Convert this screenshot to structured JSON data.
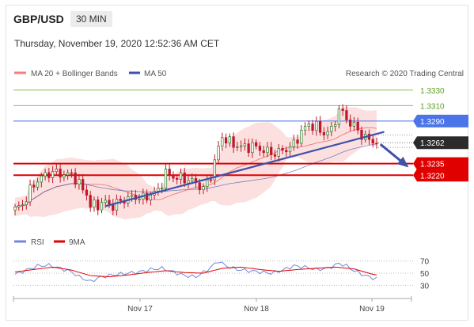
{
  "header": {
    "symbol": "GBP/USD",
    "timeframe": "30 MIN",
    "timestamp": "Thursday, November 19, 2020 12:52:36 AM CET",
    "copyright": "Research © 2020 Trading Central"
  },
  "colors": {
    "candle": "#c0182a",
    "bands_fill": "#fbd6d6",
    "ma20": "#f08080",
    "ma50": "#3f51a8",
    "resistance_green": "#8bc34a",
    "resistance_blue": "#4a74e8",
    "support_red": "#e00000",
    "current_price": "#2b2b2b",
    "rsi": "#6f88d8",
    "rsi_ma": "#e00000"
  },
  "chart_data": [
    {
      "type": "line",
      "title": "GBP/USD",
      "legend": [
        {
          "name": "MA 20 + Bollinger Bands",
          "icon": "salmon-line-icon"
        },
        {
          "name": "MA 50",
          "icon": "navy-line-icon"
        }
      ],
      "x_ticks": [
        "Nov 17",
        "Nov 18",
        "Nov 19"
      ],
      "ylim": [
        1.3165,
        1.334
      ],
      "price_path": [
        [
          0,
          1.3176
        ],
        [
          2,
          1.3182
        ],
        [
          4,
          1.32
        ],
        [
          6,
          1.3214
        ],
        [
          8,
          1.322
        ],
        [
          10,
          1.3224
        ],
        [
          12,
          1.3222
        ],
        [
          14,
          1.322
        ],
        [
          15,
          1.3222
        ],
        [
          17,
          1.3208
        ],
        [
          19,
          1.3196
        ],
        [
          20,
          1.318
        ],
        [
          22,
          1.3182
        ],
        [
          24,
          1.3185
        ],
        [
          26,
          1.318
        ],
        [
          28,
          1.3187
        ],
        [
          30,
          1.319
        ],
        [
          32,
          1.3192
        ],
        [
          34,
          1.319
        ],
        [
          36,
          1.3195
        ],
        [
          38,
          1.32
        ],
        [
          40,
          1.3222
        ],
        [
          42,
          1.3218
        ],
        [
          44,
          1.3216
        ],
        [
          46,
          1.3214
        ],
        [
          48,
          1.321
        ],
        [
          50,
          1.3202
        ],
        [
          52,
          1.322
        ],
        [
          54,
          1.3255
        ],
        [
          55,
          1.327
        ],
        [
          57,
          1.3262
        ],
        [
          59,
          1.3258
        ],
        [
          61,
          1.3256
        ],
        [
          63,
          1.3258
        ],
        [
          65,
          1.3254
        ],
        [
          67,
          1.325
        ],
        [
          69,
          1.3248
        ],
        [
          71,
          1.3252
        ],
        [
          73,
          1.3256
        ],
        [
          74,
          1.326
        ],
        [
          76,
          1.3276
        ],
        [
          78,
          1.3286
        ],
        [
          80,
          1.3282
        ],
        [
          82,
          1.3274
        ],
        [
          84,
          1.3278
        ],
        [
          85,
          1.3292
        ],
        [
          86,
          1.3304
        ],
        [
          87,
          1.33
        ],
        [
          88,
          1.3294
        ],
        [
          89,
          1.3286
        ],
        [
          90,
          1.3284
        ],
        [
          91,
          1.3278
        ],
        [
          92,
          1.3272
        ],
        [
          93,
          1.3268
        ],
        [
          94,
          1.3266
        ],
        [
          96,
          1.3262
        ]
      ],
      "levels": [
        {
          "price": "1.3330",
          "role": "resistance",
          "style": "green"
        },
        {
          "price": "1.3310",
          "role": "resistance",
          "style": "green"
        },
        {
          "price": "1.3290",
          "role": "resistance",
          "style": "blue"
        },
        {
          "price": "1.3262",
          "role": "current",
          "style": "dark"
        },
        {
          "price": "1.3235",
          "role": "support",
          "style": "red"
        },
        {
          "price": "1.3220",
          "role": "support",
          "style": "red"
        }
      ],
      "trendline": {
        "from": [
          24,
          1.318
        ],
        "to": [
          98,
          1.3276
        ]
      },
      "projection": {
        "from": [
          97,
          1.326
        ],
        "to": [
          104,
          1.3232
        ]
      }
    },
    {
      "type": "line",
      "legend": [
        {
          "name": "RSI",
          "icon": "blue-line-icon"
        },
        {
          "name": "9MA",
          "icon": "red-line-icon"
        }
      ],
      "ylim": [
        20,
        80
      ],
      "y_ticks": [
        "70",
        "50",
        "30"
      ],
      "rsi_path": [
        [
          0,
          48
        ],
        [
          3,
          55
        ],
        [
          6,
          62
        ],
        [
          9,
          63
        ],
        [
          12,
          58
        ],
        [
          15,
          52
        ],
        [
          17,
          44
        ],
        [
          20,
          36
        ],
        [
          22,
          42
        ],
        [
          24,
          45
        ],
        [
          27,
          48
        ],
        [
          30,
          50
        ],
        [
          33,
          52
        ],
        [
          36,
          56
        ],
        [
          39,
          58
        ],
        [
          42,
          52
        ],
        [
          45,
          46
        ],
        [
          48,
          44
        ],
        [
          51,
          55
        ],
        [
          54,
          70
        ],
        [
          56,
          62
        ],
        [
          59,
          56
        ],
        [
          62,
          54
        ],
        [
          65,
          52
        ],
        [
          68,
          50
        ],
        [
          71,
          55
        ],
        [
          74,
          62
        ],
        [
          77,
          60
        ],
        [
          80,
          56
        ],
        [
          83,
          58
        ],
        [
          86,
          66
        ],
        [
          88,
          62
        ],
        [
          90,
          54
        ],
        [
          93,
          46
        ],
        [
          95,
          42
        ],
        [
          97,
          40
        ]
      ],
      "ma9_path": [
        [
          0,
          52
        ],
        [
          5,
          56
        ],
        [
          10,
          60
        ],
        [
          15,
          55
        ],
        [
          20,
          46
        ],
        [
          25,
          44
        ],
        [
          30,
          47
        ],
        [
          35,
          51
        ],
        [
          40,
          54
        ],
        [
          45,
          51
        ],
        [
          50,
          50
        ],
        [
          55,
          58
        ],
        [
          60,
          60
        ],
        [
          65,
          56
        ],
        [
          70,
          53
        ],
        [
          75,
          56
        ],
        [
          80,
          58
        ],
        [
          85,
          60
        ],
        [
          90,
          57
        ],
        [
          95,
          48
        ],
        [
          97,
          46
        ]
      ]
    }
  ]
}
